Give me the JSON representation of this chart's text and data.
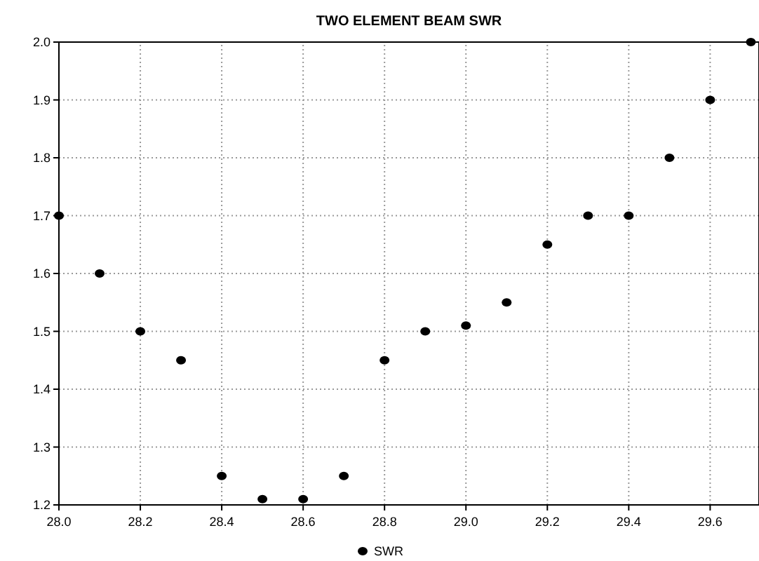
{
  "chart_data": {
    "type": "scatter",
    "title": "TWO ELEMENT BEAM SWR",
    "x": [
      28.0,
      28.1,
      28.2,
      28.3,
      28.4,
      28.5,
      28.6,
      28.7,
      28.8,
      28.9,
      29.0,
      29.1,
      29.2,
      29.3,
      29.4,
      29.5,
      29.6,
      29.7
    ],
    "series": [
      {
        "name": "SWR",
        "color": "#000000",
        "values": [
          1.7,
          1.6,
          1.5,
          1.45,
          1.25,
          1.21,
          1.21,
          1.25,
          1.45,
          1.5,
          1.51,
          1.55,
          1.65,
          1.7,
          1.7,
          1.8,
          1.9,
          2.0
        ]
      }
    ],
    "xlim": [
      28.0,
      29.72
    ],
    "xticks": [
      {
        "value": 28.0,
        "label": "28.0"
      },
      28.2,
      28.4,
      28.6,
      28.8,
      {
        "value": 29.0,
        "label": "29.0"
      },
      29.2,
      29.4,
      29.6
    ],
    "ylim": [
      1.2,
      2.0
    ],
    "yticks": [
      1.2,
      1.3,
      1.4,
      1.5,
      1.6,
      1.7,
      1.8,
      1.9,
      {
        "value": 2.0,
        "label": "2.0"
      }
    ],
    "grid": true,
    "legend": "bottom",
    "marker": "circle"
  }
}
